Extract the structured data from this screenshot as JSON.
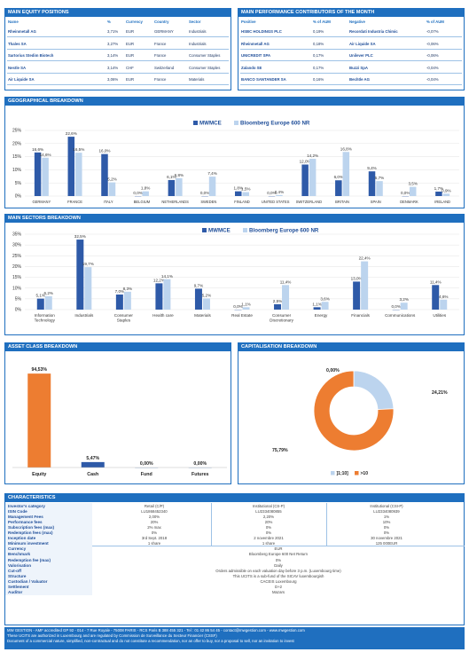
{
  "equity_positions": {
    "title": "MAIN EQUITY POSITIONS",
    "headers": [
      "Name",
      "%",
      "Currency",
      "Country",
      "Sector"
    ],
    "rows": [
      [
        "Rheinmetall AG",
        "3,71%",
        "EUR",
        "GERMANY",
        "Industrials"
      ],
      [
        "Thales SA",
        "3,27%",
        "EUR",
        "France",
        "Industrials"
      ],
      [
        "Sartorius Stedim Biotech",
        "3,14%",
        "EUR",
        "France",
        "Consumer Staples"
      ],
      [
        "Nestle SA",
        "3,14%",
        "CHF",
        "Switzerland",
        "Consumer Staples"
      ],
      [
        "Air Liquide SA",
        "3,06%",
        "EUR",
        "France",
        "Materials"
      ]
    ]
  },
  "contributors": {
    "title": "MAIN PERFORMANCE CONTRIBUTORS OF THE MONTH",
    "headers": [
      "Positive",
      "% of AUM",
      "Negative",
      "% of AUM"
    ],
    "rows": [
      [
        "HSBC HOLDINGS PLC",
        "0,19%",
        "Recordati Industria Chimic",
        "-0,07%"
      ],
      [
        "Rheinmetall AG",
        "0,18%",
        "Air Liquide SA",
        "-0,06%"
      ],
      [
        "UNICREDIT SPA",
        "0,17%",
        "Unilever PLC",
        "-0,06%"
      ],
      [
        "Zalando SE",
        "0,17%",
        "Buzzi SpA",
        "-0,04%"
      ],
      [
        "BANCO SANTANDER SA",
        "0,16%",
        "Bechtle AG",
        "-0,04%"
      ]
    ]
  },
  "geo": {
    "title": "GEOGRAPHICAL BREAKDOWN"
  },
  "sectors": {
    "title": "MAIN SECTORS BREAKDOWN"
  },
  "asset_class": {
    "title": "ASSET CLASS BREAKDOWN"
  },
  "capitalisation": {
    "title": "CAPITALISATION BREAKDOWN"
  },
  "chart_data": [
    {
      "type": "bar",
      "title": "",
      "categories": [
        "GERMANY",
        "FRANCE",
        "ITALY",
        "BELGIUM",
        "NETHERLANDS",
        "SWEDEN",
        "FINLAND",
        "UNITED STATES",
        "SWITZERLAND",
        "BRITAIN",
        "SPAIN",
        "DENMARK",
        "IRELAND"
      ],
      "series": [
        {
          "name": "MWMCE",
          "values": [
            16.6,
            22.6,
            16.0,
            0.0,
            6.1,
            0.0,
            1.8,
            0.0,
            12.0,
            6.0,
            9.4,
            0.0,
            1.7
          ],
          "labels": [
            "16,6%",
            "22,6%",
            "16,0%",
            "0,0%",
            "6,1%",
            "0,0%",
            "1,8%",
            "0,0%",
            "12,0%",
            "6,0%",
            "9,4%",
            "0,0%",
            "1,7%"
          ]
        },
        {
          "name": "Bloomberg Europe 600 NR",
          "values": [
            14.6,
            16.5,
            5.2,
            1.8,
            6.8,
            7.4,
            1.5,
            0.4,
            14.2,
            16.8,
            5.7,
            3.5,
            0.9
          ],
          "labels": [
            "14,6%",
            "16,5%",
            "5,2%",
            "1,8%",
            "6,8%",
            "7,4%",
            "1,5%",
            "0,4%",
            "14,2%",
            "16,8%",
            "5,7%",
            "3,5%",
            "0,9%"
          ]
        }
      ],
      "yticks": [
        "0%",
        "5%",
        "10%",
        "15%",
        "20%",
        "25%"
      ],
      "ylim": [
        0,
        25
      ],
      "legend": "top",
      "colors": [
        "#2e5aa8",
        "#bcd4ee"
      ]
    },
    {
      "type": "bar",
      "title": "",
      "categories": [
        "Information Technology",
        "Industrials",
        "Consumer Staples",
        "Health care",
        "Materials",
        "Real Estate",
        "Consumer Discretionary",
        "Energy",
        "Financials",
        "Communications",
        "Utilities"
      ],
      "series": [
        {
          "name": "MWMCE",
          "values": [
            5.1,
            32.5,
            7.0,
            12.2,
            9.7,
            0.0,
            2.5,
            1.1,
            13.0,
            0.0,
            11.4
          ],
          "labels": [
            "5,1%",
            "32,5%",
            "7,0%",
            "12,2%",
            "9,7%",
            "0,0%",
            "2,5%",
            "1,1%",
            "13,0%",
            "0,0%",
            "11,4%"
          ]
        },
        {
          "name": "Bloomberg Europe 600 NR",
          "values": [
            6.2,
            19.7,
            8.3,
            14.1,
            5.2,
            1.1,
            11.4,
            3.6,
            22.4,
            3.2,
            4.6
          ],
          "labels": [
            "6,2%",
            "19,7%",
            "8,3%",
            "14,1%",
            "5,2%",
            "1,1%",
            "11,4%",
            "3,6%",
            "22,4%",
            "3,2%",
            "4,6%"
          ]
        }
      ],
      "yticks": [
        "0%",
        "5%",
        "10%",
        "15%",
        "20%",
        "25%",
        "30%",
        "35%"
      ],
      "ylim": [
        0,
        35
      ],
      "legend": "top",
      "colors": [
        "#2e5aa8",
        "#bcd4ee"
      ]
    },
    {
      "type": "bar",
      "title": "",
      "categories": [
        "Equity",
        "Cash",
        "Fund",
        "Futures"
      ],
      "values": [
        94.53,
        5.47,
        0.0,
        0.0
      ],
      "labels": [
        "94,53%",
        "5,47%",
        "0,00%",
        "0,00%"
      ],
      "colors": [
        "#ed7d31",
        "#2e5aa8",
        "#2e5aa8",
        "#2e5aa8"
      ]
    },
    {
      "type": "pie",
      "title": "",
      "categories": [
        "]1;10]",
        ">10",
        ""
      ],
      "values": [
        24.21,
        75.79,
        0.0
      ],
      "labels": [
        "24,21%",
        "75,79%",
        "0,00%"
      ],
      "colors": [
        "#bcd4ee",
        "#ed7d31",
        "#2e5aa8"
      ]
    }
  ],
  "characteristics": {
    "title": "CHARACTERISTICS",
    "labels": [
      "Investor's category",
      "ISIN Code",
      "Management Fees",
      "Performance fees",
      "Subscription fees (max)",
      "Redemption fees (max)",
      "Inception date",
      "Minimum investment",
      "Currency",
      "Benchmark",
      "Redemption fee (max)",
      "Valorisation",
      "Cut-off",
      "Structure",
      "Custodian / Valuator",
      "Settlement",
      "Auditor"
    ],
    "share_headers": [
      "Retail (C/P)",
      "Institutional (CS-P)",
      "Institutional (CSI-P)"
    ],
    "share_rows": [
      [
        "LU1868452340",
        "LU2334080855",
        "LU2334080939"
      ],
      [
        "2,00%",
        "2,20%",
        "1%"
      ],
      [
        "20%",
        "20%",
        "10%"
      ],
      [
        "2% max",
        "0%",
        "0%"
      ],
      [
        "0%",
        "0%",
        "0%"
      ],
      [
        "3rd Sept. 2018",
        "2 novembre 2021",
        "30 novembre 2021"
      ],
      [
        "1 share",
        "1 share",
        "125 000EUR"
      ]
    ],
    "common_values": [
      "EUR",
      "Bloomberg Europe 600 Net Return",
      "0%",
      "Daily",
      "Orders admissible on each valuation day before 3 p.m. (Luxembourg time)",
      "This UCITS is a sub-fund of the SICAV luxembourgish",
      "CACEIS Luxembourg",
      "D+2",
      "Mazars"
    ]
  },
  "footer": {
    "line1": "MW GESTION - AMF accredited GP 92 - 014 - 7 Rue Royale - 75008 PARIS - RCS Paris B 388 455 321 - Tel : 01 42 86 54 45 - contact@mwgestion.com - www.mwgestion.com",
    "line2": "These UCITS are authorized in Luxembourg and are regulated by Commission de Surveillance du Secteur Financier (CSSF)",
    "line3": "Document of a commercial nature, simplified, non-contractual and do not constitute a recommendation, nor an offer to buy, nor a proposal to sell, nor an invitation to invest"
  }
}
